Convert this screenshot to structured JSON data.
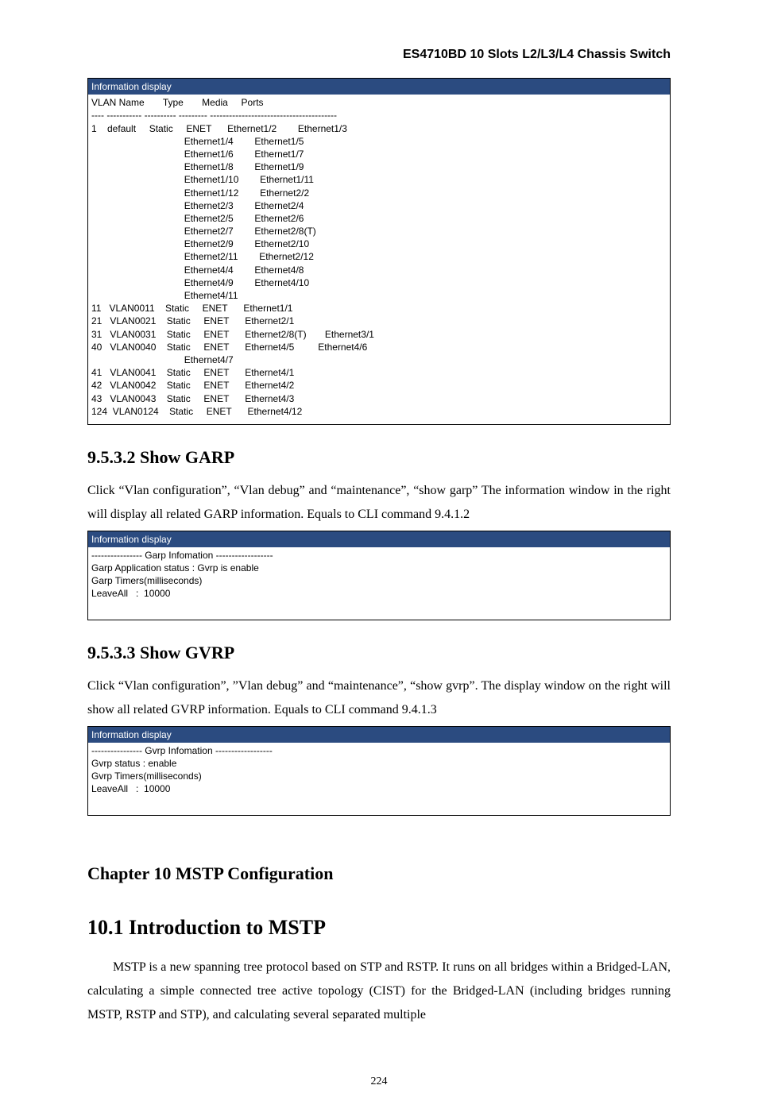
{
  "doc_title": "ES4710BD 10 Slots L2/L3/L4 Chassis Switch",
  "vlan_box": {
    "header": "Information display",
    "columns_line": "VLAN Name       Type       Media     Ports",
    "divider": "---- ----------- ---------- --------- ----------------------------------------",
    "rows": [
      "1    default     Static     ENET      Ethernet1/2        Ethernet1/3",
      "                                   Ethernet1/4        Ethernet1/5",
      "                                   Ethernet1/6        Ethernet1/7",
      "                                   Ethernet1/8        Ethernet1/9",
      "                                   Ethernet1/10        Ethernet1/11",
      "                                   Ethernet1/12        Ethernet2/2",
      "                                   Ethernet2/3        Ethernet2/4",
      "                                   Ethernet2/5        Ethernet2/6",
      "                                   Ethernet2/7        Ethernet2/8(T)",
      "                                   Ethernet2/9        Ethernet2/10",
      "                                   Ethernet2/11        Ethernet2/12",
      "                                   Ethernet4/4        Ethernet4/8",
      "                                   Ethernet4/9        Ethernet4/10",
      "                                   Ethernet4/11",
      "11   VLAN0011    Static     ENET      Ethernet1/1",
      "21   VLAN0021    Static     ENET      Ethernet2/1",
      "31   VLAN0031    Static     ENET      Ethernet2/8(T)       Ethernet3/1",
      "40   VLAN0040    Static     ENET      Ethernet4/5         Ethernet4/6",
      "                                   Ethernet4/7",
      "41   VLAN0041    Static     ENET      Ethernet4/1",
      "42   VLAN0042    Static     ENET      Ethernet4/2",
      "43   VLAN0043    Static     ENET      Ethernet4/3",
      "124  VLAN0124    Static     ENET      Ethernet4/12"
    ]
  },
  "garp_section": {
    "title": "9.5.3.2    Show GARP",
    "para": "Click “Vlan configuration”, “Vlan debug” and “maintenance”, “show garp” The information window in the right will display all related GARP information. Equals to CLI command 9.4.1.2",
    "box_header": "Information display",
    "box_lines": [
      "---------------- Garp Infomation ------------------",
      "Garp Application status : Gvrp is enable",
      "Garp Timers(milliseconds)",
      "LeaveAll   :  10000"
    ]
  },
  "gvrp_section": {
    "title": "9.5.3.3    Show GVRP",
    "para": "Click “Vlan configuration”, ”Vlan debug” and “maintenance”, “show gvrp”. The display window on the right will show all related GVRP information. Equals to CLI command 9.4.1.3",
    "box_header": "Information display",
    "box_lines": [
      "---------------- Gvrp Infomation ------------------",
      "Gvrp status : enable",
      "Gvrp Timers(milliseconds)",
      "LeaveAll   :  10000"
    ]
  },
  "chapter10": {
    "title": "Chapter 10 MSTP Configuration",
    "section_title": "10.1    Introduction to MSTP",
    "para": "MSTP is a new spanning tree protocol based on STP and RSTP. It runs on all bridges within a Bridged-LAN, calculating a simple connected tree active topology (CIST) for the Bridged-LAN (including bridges running MSTP, RSTP and STP), and calculating several separated multiple"
  },
  "page_number": "224",
  "colors": {
    "header_bg": "#2b4b80",
    "header_text": "#ffffff",
    "body_text": "#000000",
    "background": "#ffffff"
  },
  "fonts": {
    "header_family": "Arial",
    "mono_family": "Verdana",
    "serif_family": "Times New Roman"
  }
}
